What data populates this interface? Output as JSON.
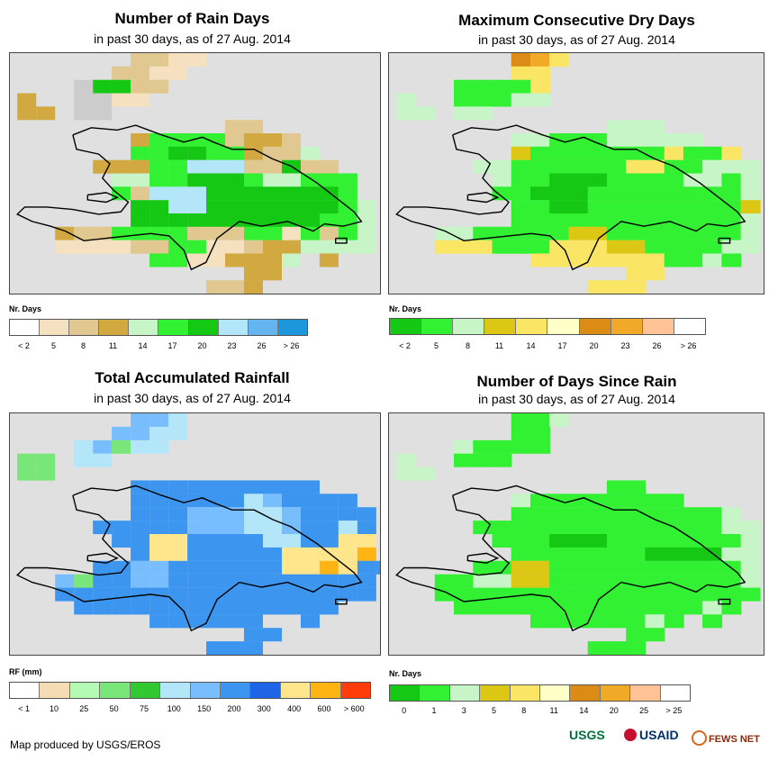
{
  "colors": {
    "coast": "#000000",
    "bg": "#e0e0e0"
  },
  "panels": [
    {
      "title": "Number of Rain Days",
      "subtitle": "in past 30 days, as of 27 Aug. 2014",
      "legend_title": "Nr. Days",
      "legend_colors": [
        "#ffffff",
        "#f5e1c0",
        "#e0c890",
        "#d2a840",
        "#c8f5c8",
        "#32f032",
        "#14c814",
        "#b4e6fa",
        "#64b4f0",
        "#1e96dc"
      ],
      "legend_labels": [
        "< 2",
        "5",
        "8",
        "11",
        "14",
        "17",
        "20",
        "23",
        "26",
        "> 26"
      ],
      "grid": [
        "......ccbb........",
        ".....ccbb.........",
        "...kggcc..........",
        "d..kkbb...........",
        "dd.kk.............",
        "...........cc.....",
        "......dffffcddc...",
        "......ffggffdcce..",
        "....dddffhhhccgcc.",
        ".....eeffgggfeefff",
        ".....fchhhgggggggf",
        "......gghhgggggggfe",
        "......ggggggggggffe",
        "..dccffffcccffbfcfe",
        "..bbbbccffbbcddeeee",
        ".......ffbbddde.d..",
        "............dd.....",
        "..........ccd......"
      ]
    },
    {
      "title": "Maximum Consecutive Dry Days",
      "subtitle": "in past 30 days, as of 27 Aug. 2014",
      "legend_title": "Nr. Days",
      "legend_colors": [
        "#14c814",
        "#32f032",
        "#c8f5c8",
        "#dcc814",
        "#fae664",
        "#ffffc8",
        "#dc8c14",
        "#f0aa28",
        "#ffc396",
        "#ffffff"
      ],
      "legend_labels": [
        "< 2",
        "5",
        "8",
        "11",
        "14",
        "17",
        "20",
        "23",
        "26",
        "> 26"
      ],
      "grid": [
        "......ghe.........",
        "......ee..........",
        "...bbbbe..........",
        "c..bbbcc..........",
        "cc.cc.............",
        "...........ccc....",
        "......ccbbbccccc..",
        "......dbbbbbbbebbe.",
        "....ccbbbbbbeebbccc",
        ".....cbbaaabbbbccbc",
        ".....bbaaabbbbbbbbc",
        "......bbaabbbbbbbbd",
        "......bbbbbbbbbbbbc",
        "..ccbbbbbddbbbbbbbc",
        "..eeebbbeeeddbbbbcc",
        ".......eeeeeeebbcb.",
        "............ee.....",
        "..........eee......"
      ]
    },
    {
      "title": "Total Accumulated Rainfall",
      "subtitle": "in past 30 days, as of 27 Aug. 2014",
      "legend_title": "RF (mm)",
      "legend_colors": [
        "#ffffff",
        "#f5dcb4",
        "#b4fab4",
        "#78e678",
        "#32c832",
        "#b4e6fa",
        "#78beff",
        "#3c96f0",
        "#1e64e6",
        "#ffe68c",
        "#ffb414",
        "#ff3c0a"
      ],
      "legend_labels": [
        "< 1",
        "10",
        "25",
        "50",
        "75",
        "100",
        "150",
        "200",
        "300",
        "400",
        "600",
        "> 600"
      ],
      "grid": [
        "......ggf.........",
        ".....ggff.........",
        "...fgdff..........",
        "dd.ff.............",
        "dd................",
        "......hhhhhhhhhh..",
        "......hhhhhhfghhhh.",
        "......hhhgggffghhhh",
        "....hhhhhgggffghhfh",
        ".....hhjjhhhhffhhjj",
        "......hjjhhhhhjjjjk",
        "....hhgghhhhhhjjkjhh",
        "..gdhhgghhhhhhhhhhh",
        "..hhhhhhhhhhhhhhhhh",
        "...hhhhhhhhhhhhhh..",
        ".......hhhhhh..h...",
        "............hh.....",
        "..........hhh......"
      ]
    },
    {
      "title": "Number of Days Since Rain",
      "subtitle": "in past 30 days, as of 27 Aug. 2014",
      "legend_title": "Nr. Days",
      "legend_colors": [
        "#14c814",
        "#32f032",
        "#c8f5c8",
        "#dcc814",
        "#fae664",
        "#ffffc8",
        "#dc8c14",
        "#f0aa28",
        "#ffc396",
        "#ffffff"
      ],
      "legend_labels": [
        "0",
        "1",
        "3",
        "5",
        "8",
        "11",
        "14",
        "20",
        "25",
        "> 25"
      ],
      "grid": [
        "......bbc.........",
        "......bb..........",
        "...cbbbb..........",
        "c..bbb............",
        "cc................",
        "...........bb.....",
        "......cbbbbbbbb...",
        "......bbbbbbbbbbbc.",
        "....bbbbbbbbbbbbbcc",
        ".....bbbaaabbbbbbbc",
        "......bbbbbbbaaaacc",
        "....bbddbbbbbbbbbbc",
        "..bbccddbbbbbbbbbbc",
        "..bbbbbbbbbbbbbbbbb",
        "...bbbbbbbbbbbbbcb.",
        ".......bbbbbbcb.b..",
        "............bb.....",
        "..........bbb......"
      ]
    }
  ],
  "footer": {
    "credit": "Map produced by USGS/EROS",
    "logo_usgs": "USGS",
    "logo_usaid": "USAID",
    "logo_fews": "FEWS NET"
  }
}
